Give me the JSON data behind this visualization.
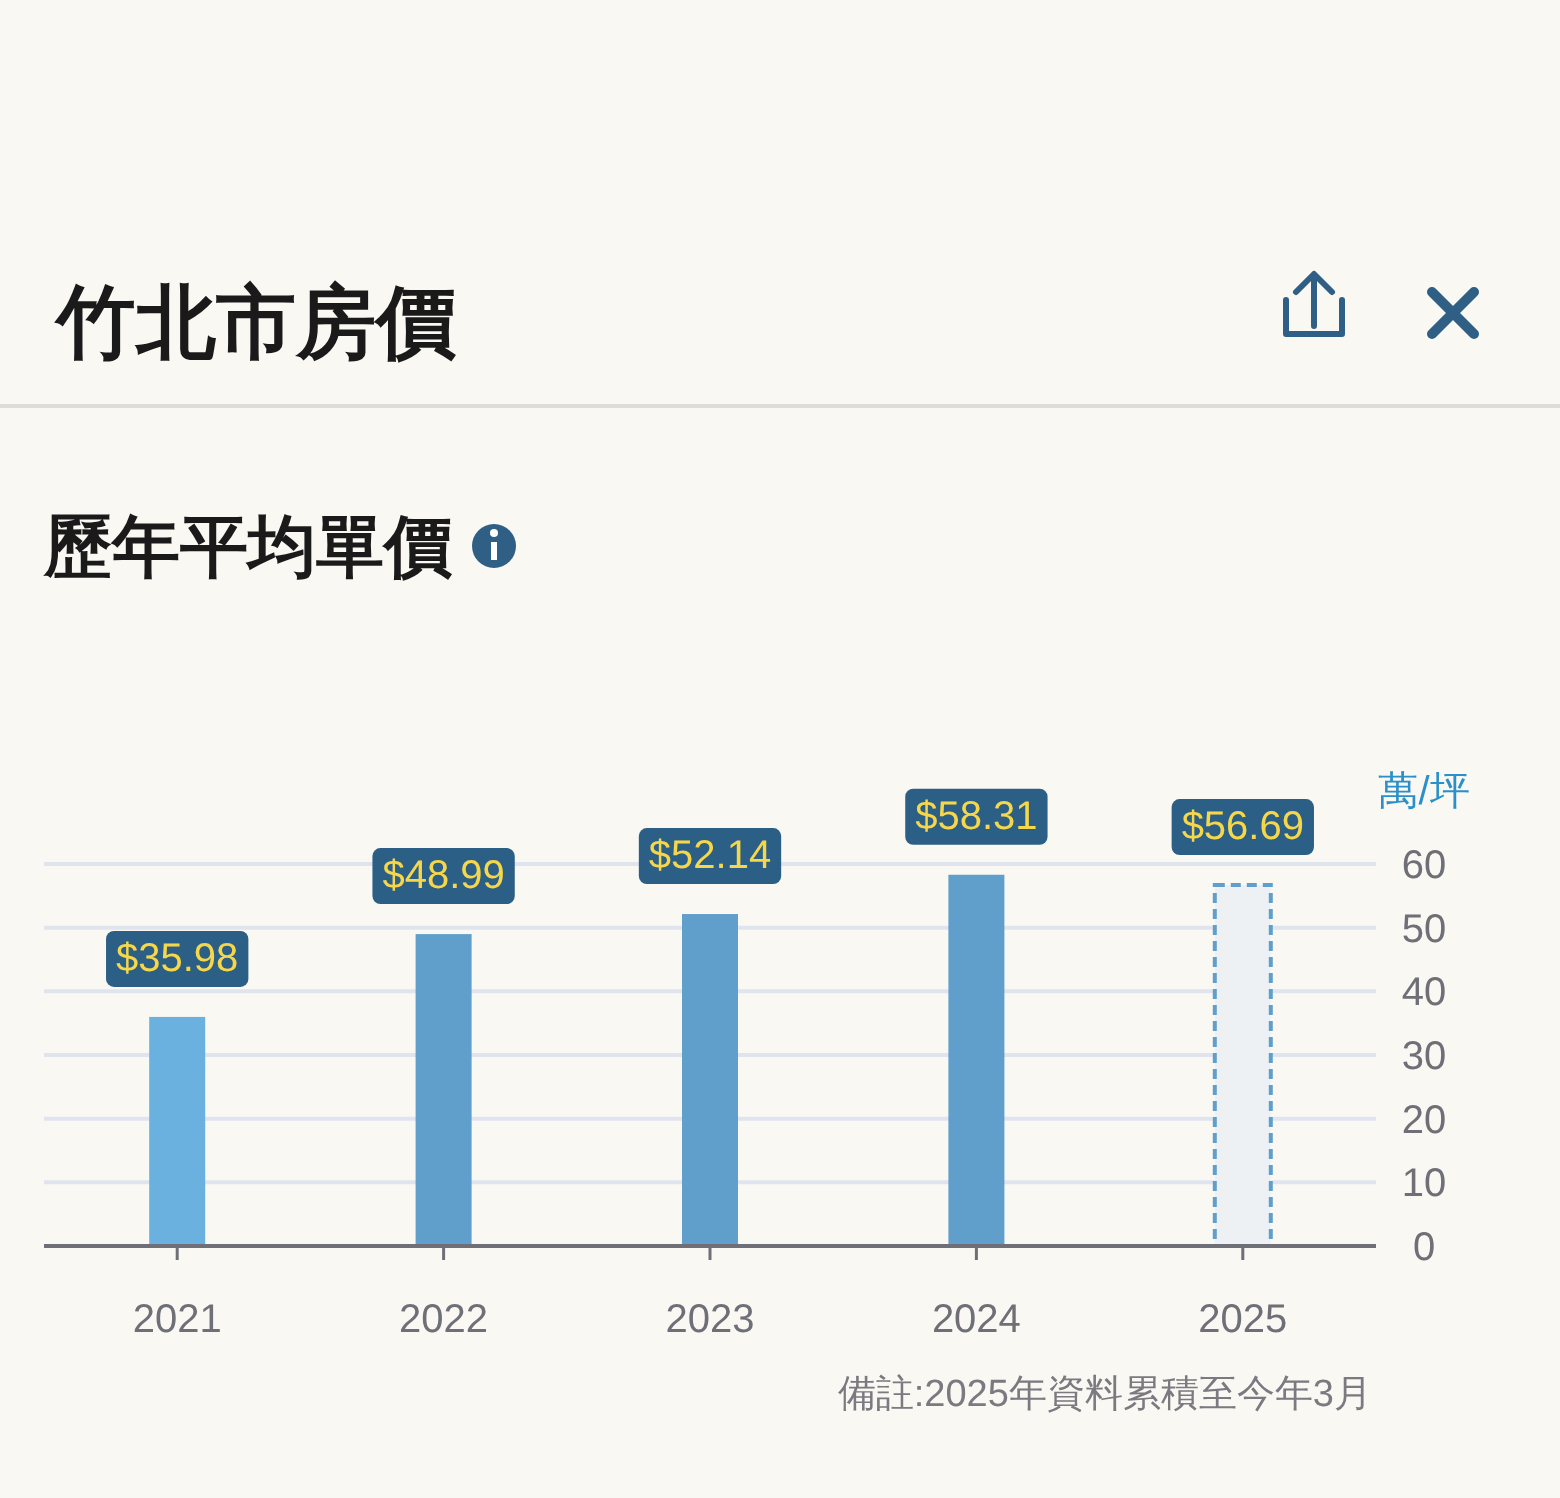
{
  "chart_data": {
    "type": "bar",
    "title": "竹北市房價",
    "subtitle": "歷年平均單價",
    "ylabel": "萬/坪",
    "categories": [
      "2021",
      "2022",
      "2023",
      "2024",
      "2025"
    ],
    "values": [
      35.98,
      48.99,
      52.14,
      58.31,
      56.69
    ],
    "colors": [
      "#6ab1df",
      "#609fcb",
      "#609fcb",
      "#609fcb",
      "#edf1f4"
    ],
    "value_labels": [
      "$35.98",
      "$48.99",
      "$52.14",
      "$58.31",
      "$56.69"
    ],
    "ylim": [
      0,
      60
    ],
    "yticks": [
      0,
      10,
      20,
      30,
      40,
      50,
      60
    ],
    "grid": "y",
    "annotations": [
      "備註:2025年資料累積至今年3月"
    ]
  }
}
